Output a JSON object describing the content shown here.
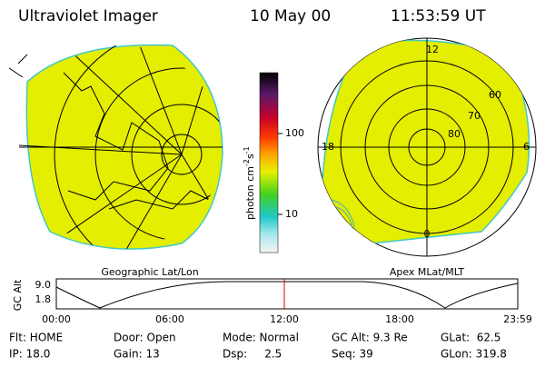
{
  "header": {
    "instrument": "Ultraviolet Imager",
    "date": "10 May 00",
    "time": "11:53:59 UT"
  },
  "colorbar": {
    "label": "photon cm",
    "exp1": "-2",
    "unit2": "s",
    "exp2": "-1",
    "ticks": [
      "100",
      "10"
    ]
  },
  "left_map": {
    "caption": "Geographic Lat/Lon"
  },
  "right_map": {
    "caption": "Apex MLat/MLT",
    "mlt_labels": [
      "12",
      "18",
      "6",
      "0"
    ],
    "lat_labels": [
      "60",
      "70",
      "80"
    ]
  },
  "altitude_panel": {
    "axis_label": "GC Alt",
    "ticks": [
      "9.0",
      "1.8"
    ],
    "time_ticks": [
      "00:00",
      "06:00",
      "12:00",
      "18:00",
      "23:59"
    ]
  },
  "info": {
    "rows": [
      [
        "Flt: HOME",
        "Door: Open",
        "Mode: Normal",
        "GC Alt: 9.3 Re",
        "GLat:  62.5"
      ],
      [
        "IP: 18.0",
        "Gain: 13",
        "Dsp:     2.5",
        "Seq: 39",
        "GLon: 319.8"
      ]
    ]
  }
}
